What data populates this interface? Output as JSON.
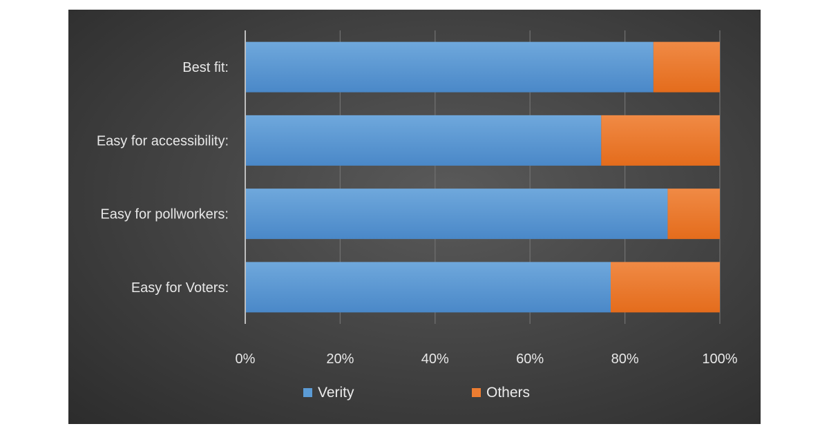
{
  "chart_data": {
    "type": "bar",
    "orientation": "horizontal",
    "stacked": "percent",
    "categories": [
      "Best fit:",
      "Easy for accessibility:",
      "Easy for pollworkers:",
      "Easy for Voters:"
    ],
    "series": [
      {
        "name": "Verity",
        "values": [
          86,
          75,
          89,
          77
        ],
        "color": "#5b9bd5"
      },
      {
        "name": "Others",
        "values": [
          14,
          25,
          11,
          23
        ],
        "color": "#ed7d31"
      }
    ],
    "xlim": [
      0,
      100
    ],
    "x_ticks": [
      "0%",
      "20%",
      "40%",
      "60%",
      "80%",
      "100%"
    ],
    "grid": true,
    "legend_position": "bottom",
    "background": "#454545"
  }
}
